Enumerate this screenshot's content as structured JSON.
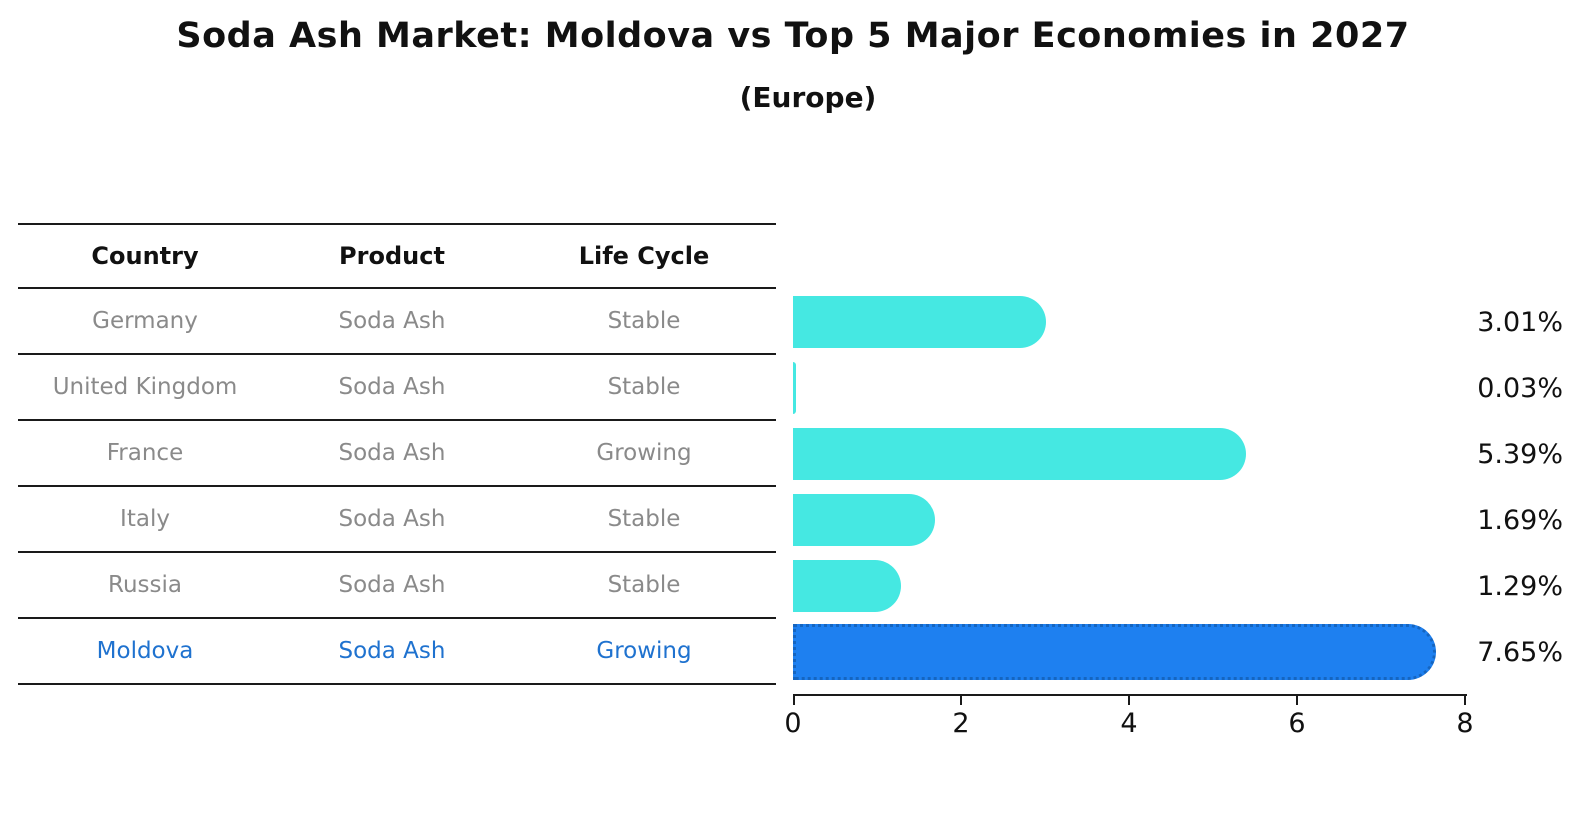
{
  "title": "Soda Ash Market: Moldova vs Top 5 Major Economies in 2027",
  "subtitle": "(Europe)",
  "table": {
    "headers": [
      "Country",
      "Product",
      "Life Cycle"
    ],
    "rows": [
      {
        "country": "Germany",
        "product": "Soda Ash",
        "life_cycle": "Stable",
        "share": "3.01%",
        "highlight": false
      },
      {
        "country": "United Kingdom",
        "product": "Soda Ash",
        "life_cycle": "Stable",
        "share": "0.03%",
        "highlight": false
      },
      {
        "country": "France",
        "product": "Soda Ash",
        "life_cycle": "Growing",
        "share": "5.39%",
        "highlight": false
      },
      {
        "country": "Italy",
        "product": "Soda Ash",
        "life_cycle": "Stable",
        "share": "1.69%",
        "highlight": false
      },
      {
        "country": "Russia",
        "product": "Soda Ash",
        "life_cycle": "Stable",
        "share": "1.29%",
        "highlight": false
      },
      {
        "country": "Moldova",
        "product": "Soda Ash",
        "life_cycle": "Growing",
        "share": "7.65%",
        "highlight": true
      }
    ]
  },
  "chart_data": {
    "type": "bar",
    "orientation": "horizontal",
    "title": "Soda Ash Market: Moldova vs Top 5 Major Economies in 2027",
    "subtitle": "(Europe)",
    "categories": [
      "Germany",
      "United Kingdom",
      "France",
      "Italy",
      "Russia",
      "Moldova"
    ],
    "values": [
      3.01,
      0.03,
      5.39,
      1.69,
      1.29,
      7.65
    ],
    "value_labels": [
      "3.01%",
      "0.03%",
      "5.39%",
      "1.69%",
      "1.29%",
      "7.65%"
    ],
    "xlabel": "",
    "ylabel": "",
    "xlim": [
      0,
      8
    ],
    "xticks": [
      0,
      2,
      4,
      6,
      8
    ],
    "grid": false,
    "legend": false,
    "bar_color": "#45E8E2",
    "highlight_color": "#1E80F0",
    "highlight_border_color": "#1565C0",
    "highlight_category": "Moldova",
    "highlight_text_color": "#1f72cf"
  }
}
